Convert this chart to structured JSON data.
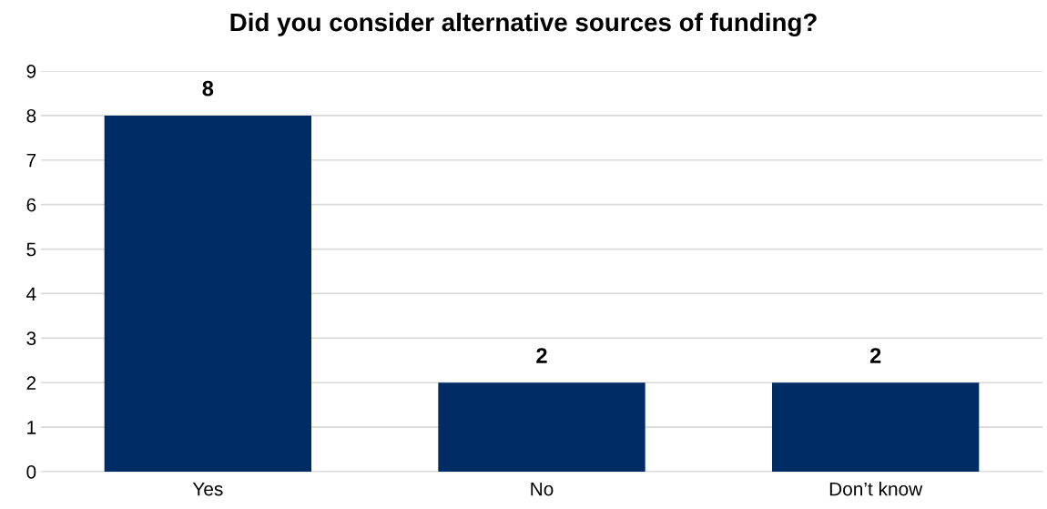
{
  "chart_data": {
    "type": "bar",
    "title": "Did you consider alternative sources of funding?",
    "categories": [
      "Yes",
      "No",
      "Don’t know"
    ],
    "values": [
      8,
      2,
      2
    ],
    "color": "#002c66",
    "ylim": [
      0,
      9
    ],
    "yticks": [
      0,
      1,
      2,
      3,
      4,
      5,
      6,
      7,
      8,
      9
    ],
    "grid": "y",
    "data_labels": true
  }
}
